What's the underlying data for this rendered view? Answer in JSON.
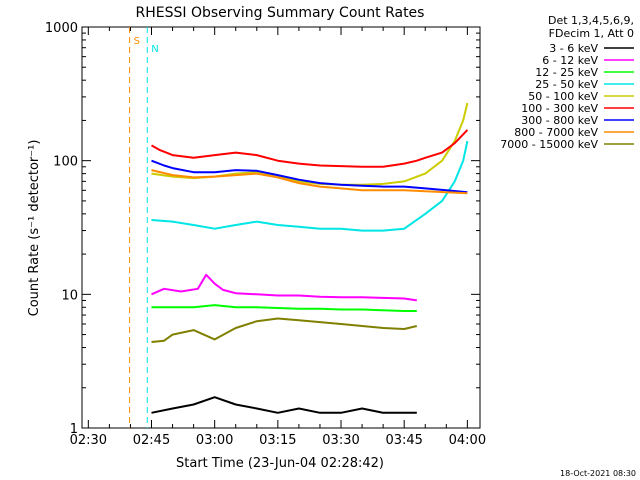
{
  "chart_data": {
    "type": "line",
    "title": "RHESSI Observing Summary Count Rates",
    "xlabel": "Start Time (23-Jun-04 02:28:42)",
    "ylabel": "Count Rate (s⁻¹ detector⁻¹)",
    "yscale": "log",
    "ylim": [
      1,
      1000
    ],
    "xlim_minutes": [
      -1.5,
      93
    ],
    "x_ticks": [
      {
        "label": "02:30",
        "minute": 0
      },
      {
        "label": "02:45",
        "minute": 15
      },
      {
        "label": "03:00",
        "minute": 30
      },
      {
        "label": "03:15",
        "minute": 45
      },
      {
        "label": "03:30",
        "minute": 60
      },
      {
        "label": "03:45",
        "minute": 75
      },
      {
        "label": "04:00",
        "minute": 90
      }
    ],
    "y_ticks": [
      {
        "label": "1",
        "value": 1
      },
      {
        "label": "10",
        "value": 10
      },
      {
        "label": "100",
        "value": 100
      },
      {
        "label": "1000",
        "value": 1000
      }
    ],
    "legend_header": [
      "Det 1,3,4,5,6,9,",
      "FDecim 1, Att 0"
    ],
    "legend_position": "right",
    "series": [
      {
        "name": "3 - 6 keV",
        "color": "#000000",
        "x": [
          15,
          20,
          25,
          30,
          35,
          40,
          45,
          50,
          55,
          60,
          65,
          70,
          75,
          78
        ],
        "y": [
          1.3,
          1.4,
          1.5,
          1.7,
          1.5,
          1.4,
          1.3,
          1.4,
          1.3,
          1.3,
          1.4,
          1.3,
          1.3,
          1.3
        ]
      },
      {
        "name": "6 - 12 keV",
        "color": "#ff00ff",
        "x": [
          15,
          18,
          22,
          26,
          28,
          30,
          32,
          35,
          40,
          45,
          50,
          55,
          60,
          65,
          70,
          75,
          78
        ],
        "y": [
          10,
          11,
          10.5,
          11,
          14,
          12,
          10.8,
          10.2,
          10,
          9.8,
          9.8,
          9.6,
          9.5,
          9.5,
          9.4,
          9.3,
          9
        ]
      },
      {
        "name": "12 - 25 keV",
        "color": "#00ff00",
        "x": [
          15,
          20,
          25,
          30,
          35,
          40,
          45,
          50,
          55,
          60,
          65,
          70,
          75,
          78
        ],
        "y": [
          8,
          8,
          8,
          8.3,
          8,
          8,
          7.9,
          7.8,
          7.8,
          7.7,
          7.7,
          7.6,
          7.5,
          7.5
        ]
      },
      {
        "name": "25 - 50 keV",
        "color": "#00e5e5",
        "x": [
          15,
          20,
          25,
          30,
          35,
          40,
          45,
          50,
          55,
          60,
          65,
          70,
          75,
          80,
          84,
          87,
          89,
          90
        ],
        "y": [
          36,
          35,
          33,
          31,
          33,
          35,
          33,
          32,
          31,
          31,
          30,
          30,
          31,
          40,
          50,
          70,
          100,
          140
        ]
      },
      {
        "name": "50 - 100 keV",
        "color": "#cccc00",
        "x": [
          15,
          20,
          25,
          30,
          35,
          40,
          45,
          50,
          55,
          60,
          65,
          70,
          75,
          80,
          84,
          87,
          89,
          90
        ],
        "y": [
          80,
          76,
          74,
          76,
          80,
          82,
          76,
          70,
          67,
          66,
          66,
          67,
          70,
          80,
          100,
          140,
          200,
          270
        ]
      },
      {
        "name": "100 - 300 keV",
        "color": "#ff0000",
        "x": [
          15,
          17,
          20,
          25,
          30,
          35,
          40,
          45,
          50,
          55,
          60,
          65,
          70,
          75,
          78,
          80,
          84,
          87,
          90
        ],
        "y": [
          130,
          120,
          110,
          105,
          110,
          115,
          110,
          100,
          95,
          92,
          91,
          90,
          90,
          95,
          100,
          105,
          115,
          135,
          170
        ]
      },
      {
        "name": "300 - 800 keV",
        "color": "#0000ff",
        "x": [
          15,
          18,
          20,
          25,
          30,
          35,
          40,
          45,
          50,
          55,
          60,
          65,
          70,
          75,
          80,
          85,
          90
        ],
        "y": [
          100,
          92,
          88,
          82,
          82,
          85,
          84,
          78,
          72,
          68,
          66,
          65,
          64,
          64,
          62,
          60,
          58
        ]
      },
      {
        "name": "800 - 7000 keV",
        "color": "#ff8c00",
        "x": [
          15,
          20,
          25,
          30,
          35,
          40,
          45,
          50,
          55,
          60,
          65,
          70,
          75,
          80,
          85,
          90
        ],
        "y": [
          85,
          78,
          75,
          76,
          78,
          80,
          75,
          68,
          64,
          62,
          60,
          60,
          60,
          59,
          58,
          57
        ]
      },
      {
        "name": "7000 - 15000 keV",
        "color": "#808000",
        "x": [
          15,
          18,
          20,
          25,
          30,
          35,
          40,
          45,
          50,
          55,
          60,
          65,
          70,
          75,
          78
        ],
        "y": [
          4.4,
          4.5,
          5,
          5.4,
          4.6,
          5.6,
          6.3,
          6.6,
          6.4,
          6.2,
          6.0,
          5.8,
          5.6,
          5.5,
          5.8
        ]
      }
    ],
    "markers": [
      {
        "label": "S",
        "color": "#ff8c00",
        "minute": 9.8
      },
      {
        "label": "N",
        "color": "#00e5e5",
        "minute": 14
      }
    ]
  },
  "footer_timestamp": "18-Oct-2021 08:30"
}
